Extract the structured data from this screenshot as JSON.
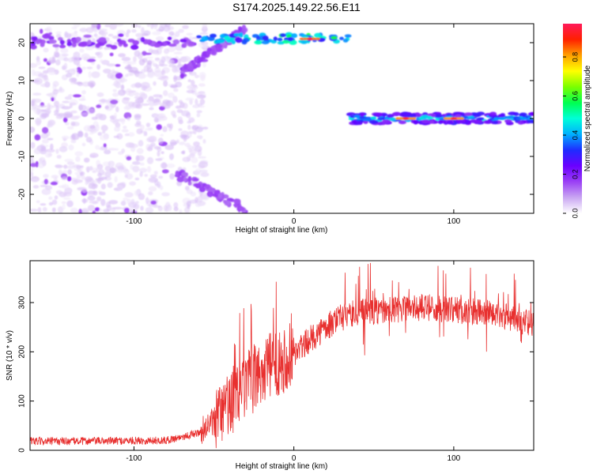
{
  "title": "S174.2025.149.22.56.E11",
  "colors": {
    "snr_line": "#e8302f",
    "colorbar_stops": [
      "#ffffff",
      "#c9a6f2",
      "#9a3ff5",
      "#6a00ff",
      "#1f2cff",
      "#00b0ff",
      "#00ffd8",
      "#00ff50",
      "#7cff00",
      "#ffff00",
      "#ffa000",
      "#ff2000",
      "#ff1a5a"
    ]
  },
  "chart_data": [
    {
      "type": "heatmap",
      "xlabel": "Height of straight line (km)",
      "ylabel": "Frequency (Hz)",
      "xlim": [
        -165,
        150
      ],
      "ylim": [
        -25,
        25
      ],
      "xticks": [
        -100,
        0,
        100
      ],
      "yticks": [
        -20,
        -10,
        0,
        10,
        20
      ],
      "colorbar": {
        "label": "Normalized spectral amplitude",
        "range": [
          0,
          0.97
        ],
        "ticks": [
          0.0,
          0.2,
          0.4,
          0.6,
          0.8
        ]
      },
      "features": {
        "noise_cloud_x": [
          -165,
          -70
        ],
        "upper_band": {
          "x": [
            -165,
            34
          ],
          "freq_hz": 21
        },
        "center_band": {
          "x": [
            34,
            150
          ],
          "freq_hz": 0
        },
        "peaks": [
          {
            "x": 10,
            "freq_hz": 21,
            "amp": 0.93
          },
          {
            "x": 70,
            "freq_hz": 0,
            "amp": 0.9
          },
          {
            "x": 100,
            "freq_hz": 0,
            "amp": 0.9
          }
        ]
      }
    },
    {
      "type": "line",
      "xlabel": "Height of straight line (km)",
      "ylabel": "SNR (10 * v/v)",
      "xlim": [
        -165,
        150
      ],
      "ylim": [
        0,
        385
      ],
      "xticks": [
        -100,
        0,
        100
      ],
      "yticks": [
        0,
        100,
        200,
        300
      ],
      "baseline": {
        "x": [
          -165,
          -80,
          -60,
          -50,
          -40,
          -30,
          -20,
          -10,
          0,
          10,
          20,
          30,
          40,
          60,
          80,
          100,
          120,
          140,
          150
        ],
        "y": [
          18,
          20,
          35,
          60,
          95,
          130,
          160,
          180,
          195,
          225,
          250,
          270,
          280,
          285,
          290,
          285,
          280,
          265,
          255
        ]
      }
    }
  ]
}
